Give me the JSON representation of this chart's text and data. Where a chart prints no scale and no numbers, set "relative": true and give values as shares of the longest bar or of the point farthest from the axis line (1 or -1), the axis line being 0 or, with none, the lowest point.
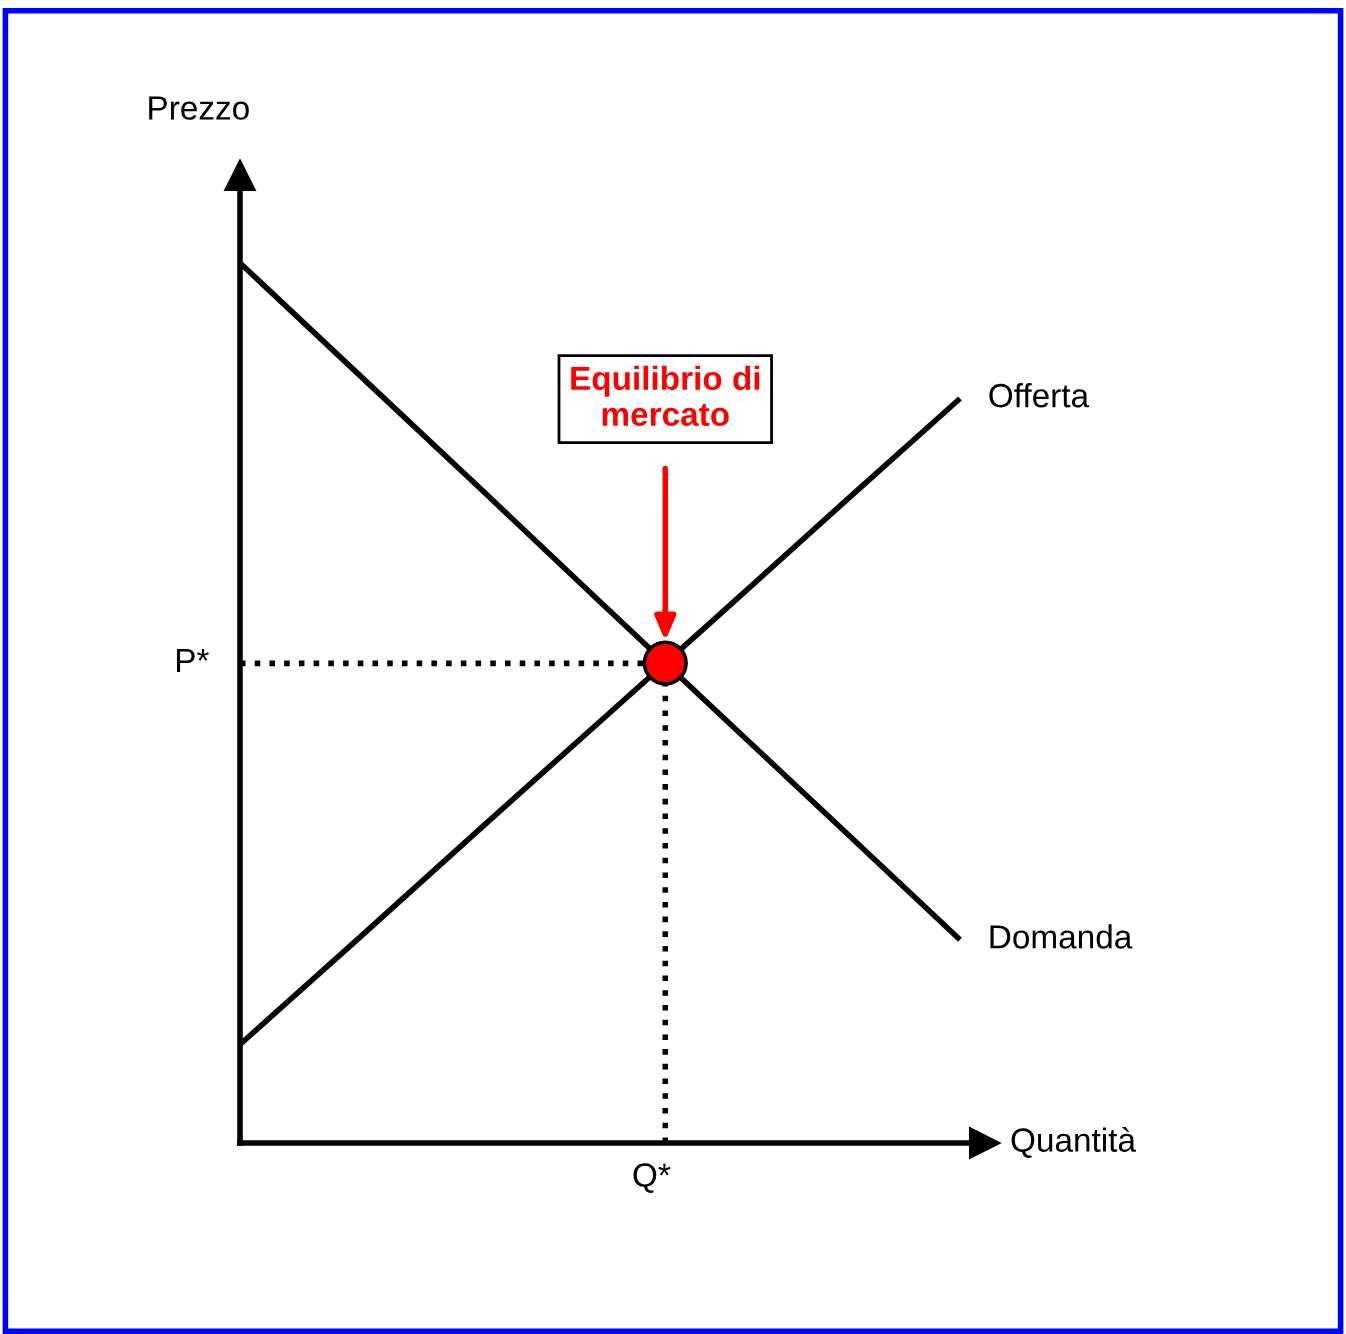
{
  "chart_data": {
    "type": "line",
    "relative": true,
    "xlabel": "Quantità",
    "ylabel": "Prezzo",
    "categories": [
      null,
      null,
      null,
      null,
      null,
      null,
      null
    ],
    "series": [
      {
        "name": "Domanda",
        "color": "#000000",
        "values": [
          1,
          0.872,
          0.744,
          0.615,
          0.487,
          0.359,
          0.231
        ]
      },
      {
        "name": "Offerta",
        "color": "#000000",
        "values": [
          0.112,
          0.234,
          0.357,
          0.479,
          0.601,
          0.724,
          0.846
        ]
      }
    ],
    "ref_lines": [
      {
        "axis": "y",
        "value": 0.545,
        "label": "P*",
        "line_style": "dotted",
        "color": "#000000"
      }
    ],
    "annotations": [
      "Equilibrio di\nmercato",
      "Q*"
    ],
    "legend": false,
    "line_style": "solid",
    "marker": "none"
  }
}
